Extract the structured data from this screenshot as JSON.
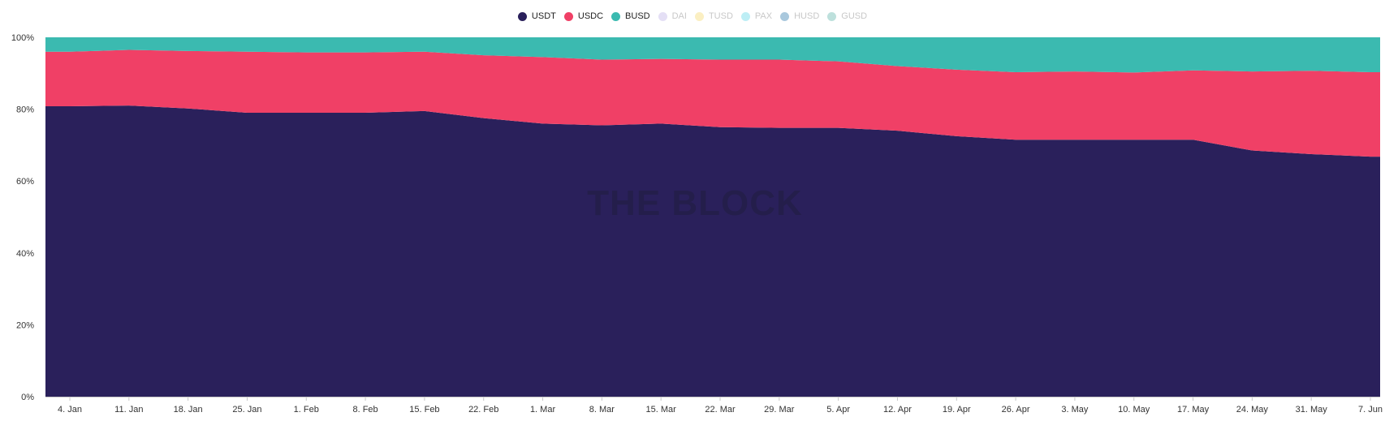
{
  "watermark": "THE BLOCK",
  "legend": [
    {
      "name": "USDT",
      "color": "#2a205b",
      "active": true
    },
    {
      "name": "USDC",
      "color": "#f04066",
      "active": true
    },
    {
      "name": "BUSD",
      "color": "#3bbab0",
      "active": true
    },
    {
      "name": "DAI",
      "color": "#e4dff5",
      "active": false
    },
    {
      "name": "TUSD",
      "color": "#fbefc2",
      "active": false
    },
    {
      "name": "PAX",
      "color": "#bdeef5",
      "active": false
    },
    {
      "name": "HUSD",
      "color": "#a9c8dd",
      "active": false
    },
    {
      "name": "GUSD",
      "color": "#bde0dc",
      "active": false
    }
  ],
  "chart_data": {
    "type": "area",
    "stacked": "percent",
    "title": "",
    "xlabel": "",
    "ylabel": "",
    "ylim": [
      0,
      100
    ],
    "y_ticks": [
      "0%",
      "20%",
      "40%",
      "60%",
      "80%",
      "100%"
    ],
    "x_ticks": [
      "4. Jan",
      "11. Jan",
      "18. Jan",
      "25. Jan",
      "1. Feb",
      "8. Feb",
      "15. Feb",
      "22. Feb",
      "1. Mar",
      "8. Mar",
      "15. Mar",
      "22. Mar",
      "29. Mar",
      "5. Apr",
      "12. Apr",
      "19. Apr",
      "26. Apr",
      "3. May",
      "10. May",
      "17. May",
      "24. May",
      "31. May",
      "7. Jun"
    ],
    "x": [
      "4. Jan",
      "11. Jan",
      "18. Jan",
      "25. Jan",
      "1. Feb",
      "8. Feb",
      "15. Feb",
      "22. Feb",
      "1. Mar",
      "8. Mar",
      "15. Mar",
      "22. Mar",
      "29. Mar",
      "5. Apr",
      "12. Apr",
      "19. Apr",
      "26. Apr",
      "3. May",
      "10. May",
      "17. May",
      "24. May",
      "31. May",
      "7. Jun"
    ],
    "series": [
      {
        "name": "USDT",
        "values": [
          80.8,
          81.0,
          80.2,
          79.0,
          79.0,
          79.0,
          79.5,
          77.5,
          76.0,
          75.5,
          76.0,
          75.0,
          74.8,
          74.8,
          74.0,
          72.5,
          71.5,
          71.5,
          71.5,
          71.5,
          68.5,
          67.5,
          66.8
        ]
      },
      {
        "name": "USDC",
        "values": [
          15.2,
          15.5,
          16.0,
          17.0,
          16.8,
          16.8,
          16.5,
          17.5,
          18.5,
          18.3,
          18.0,
          18.8,
          19.0,
          18.5,
          18.0,
          18.5,
          18.8,
          19.0,
          18.7,
          19.3,
          22.0,
          23.2,
          23.5
        ]
      },
      {
        "name": "BUSD",
        "values": [
          4.0,
          3.5,
          3.8,
          4.0,
          4.2,
          4.2,
          4.0,
          5.0,
          5.5,
          6.2,
          6.0,
          6.2,
          6.2,
          6.7,
          8.0,
          9.0,
          9.7,
          9.5,
          9.8,
          9.2,
          9.5,
          9.3,
          9.7
        ]
      }
    ],
    "grid": false,
    "legend_position": "top-center"
  }
}
